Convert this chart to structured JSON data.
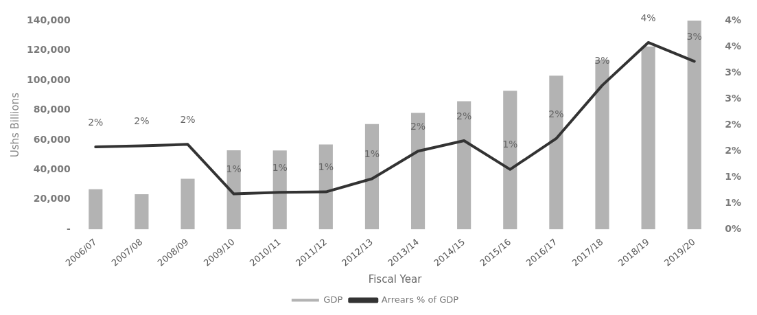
{
  "chart_data": {
    "type": "bar",
    "xlabel": "Fiscal Year",
    "ylabel": "Ushs Billions",
    "categories": [
      "2006/07",
      "2007/08",
      "2008/09",
      "2009/10",
      "2010/11",
      "2011/12",
      "2012/13",
      "2013/14",
      "2014/15",
      "2015/16",
      "2016/17",
      "2017/18",
      "2018/19",
      "2019/20"
    ],
    "series": [
      {
        "name": "GDP",
        "color": "#b3b3b3",
        "values": [
          27000,
          23600,
          34000,
          53000,
          52900,
          57000,
          70700,
          78100,
          86000,
          93000,
          103100,
          113800,
          122600,
          140000
        ]
      },
      {
        "name": "Arrears % of GDP",
        "type": "line",
        "axis": "y2",
        "color": "#333333",
        "values": [
          1.58,
          1.6,
          1.63,
          0.68,
          0.71,
          0.72,
          0.97,
          1.5,
          1.7,
          1.15,
          1.74,
          2.76,
          3.58,
          3.22
        ],
        "value_labels": [
          "2%",
          "2%",
          "2%",
          "1%",
          "1%",
          "1%",
          "1%",
          "2%",
          "2%",
          "1%",
          "2%",
          "3%",
          "4%",
          "3%"
        ]
      }
    ],
    "ylim": [
      0,
      140000
    ],
    "yticks": [
      {
        "value": 0,
        "label": "-"
      },
      {
        "value": 20000,
        "label": "20,000"
      },
      {
        "value": 40000,
        "label": "40,000"
      },
      {
        "value": 60000,
        "label": "60,000"
      },
      {
        "value": 80000,
        "label": "80,000"
      },
      {
        "value": 100000,
        "label": "100,000"
      },
      {
        "value": 120000,
        "label": "120,000"
      },
      {
        "value": 140000,
        "label": "140,000"
      }
    ],
    "y2lim": [
      0,
      4
    ],
    "y2ticks": [
      {
        "value": 0,
        "label": "0%"
      },
      {
        "value": 0.5,
        "label": "1%"
      },
      {
        "value": 1,
        "label": "1%"
      },
      {
        "value": 1.5,
        "label": "2%"
      },
      {
        "value": 2,
        "label": "2%"
      },
      {
        "value": 2.5,
        "label": "3%"
      },
      {
        "value": 3,
        "label": "3%"
      },
      {
        "value": 3.5,
        "label": "4%"
      },
      {
        "value": 4,
        "label": "4%"
      }
    ],
    "grid": false,
    "legend": "bottom",
    "marker": "none"
  }
}
